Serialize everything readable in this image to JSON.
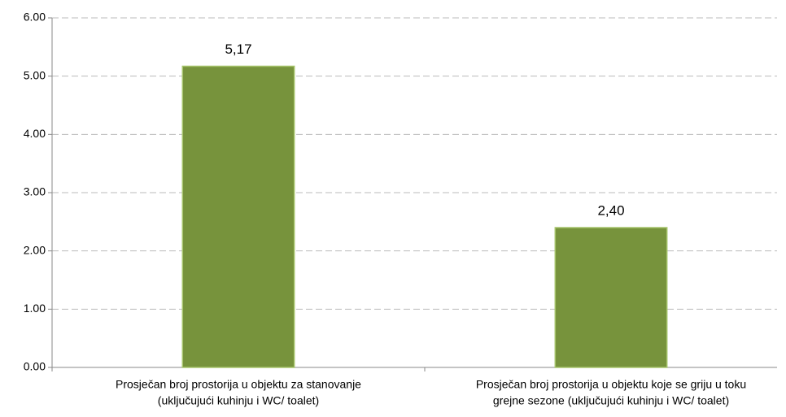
{
  "chart_data": {
    "type": "bar",
    "categories": [
      [
        "Prosječan broj prostorija u objektu za stanovanje",
        "(uključujući kuhinju i WC/ toalet)"
      ],
      [
        "Prosječan broj prostorija u objektu koje se griju u toku",
        "grejne sezone (uključujući kuhinju i WC/ toalet)"
      ]
    ],
    "values": [
      5.17,
      2.4
    ],
    "value_labels": [
      "5,17",
      "2,40"
    ],
    "color": "#77933c",
    "ylim": [
      0,
      6
    ],
    "yticks": [
      {
        "value": 0,
        "label": "0.00"
      },
      {
        "value": 1,
        "label": "1.00"
      },
      {
        "value": 2,
        "label": "2.00"
      },
      {
        "value": 3,
        "label": "3.00"
      },
      {
        "value": 4,
        "label": "4.00"
      },
      {
        "value": 5,
        "label": "5.00"
      },
      {
        "value": 6,
        "label": "6.00"
      }
    ],
    "grid": true
  }
}
